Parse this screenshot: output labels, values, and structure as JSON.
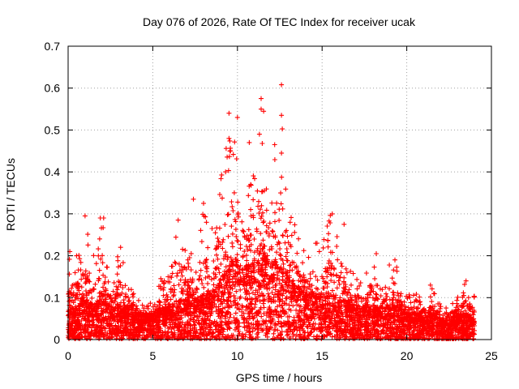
{
  "chart_data": {
    "type": "scatter",
    "title": "Day 076 of 2026, Rate Of TEC Index for receiver ucak",
    "xlabel": "GPS time / hours",
    "ylabel": "ROTI / TECUs",
    "xlim": [
      0,
      25
    ],
    "ylim": [
      0,
      0.7
    ],
    "xticks": [
      0,
      5,
      10,
      15,
      20,
      25
    ],
    "yticks": [
      0,
      0.1,
      0.2,
      0.3,
      0.4,
      0.5,
      0.6,
      0.7
    ],
    "xtick_labels": [
      "0",
      "5",
      "10",
      "15",
      "20",
      "25"
    ],
    "ytick_labels": [
      "0",
      "0.1",
      "0.2",
      "0.3",
      "0.4",
      "0.5",
      "0.6",
      "0.7"
    ],
    "grid": true,
    "marker": "+",
    "color": "#ff0000",
    "x_range_observed": [
      0,
      24
    ],
    "envelope": {
      "x": [
        0.0,
        0.5,
        1.0,
        1.5,
        2.0,
        2.5,
        3.0,
        3.5,
        4.0,
        4.5,
        5.0,
        5.5,
        6.0,
        6.5,
        7.0,
        7.5,
        8.0,
        8.5,
        9.0,
        9.5,
        10.0,
        10.5,
        11.0,
        11.5,
        12.0,
        12.5,
        13.0,
        13.5,
        14.0,
        14.5,
        15.0,
        15.5,
        16.0,
        16.5,
        17.0,
        17.5,
        18.0,
        18.5,
        19.0,
        19.5,
        20.0,
        20.5,
        21.0,
        21.5,
        22.0,
        22.5,
        23.0,
        23.5,
        24.0
      ],
      "upper": [
        0.21,
        0.2,
        0.29,
        0.2,
        0.29,
        0.16,
        0.22,
        0.15,
        0.1,
        0.09,
        0.09,
        0.15,
        0.16,
        0.28,
        0.2,
        0.24,
        0.32,
        0.26,
        0.4,
        0.54,
        0.46,
        0.36,
        0.42,
        0.57,
        0.38,
        0.61,
        0.36,
        0.26,
        0.21,
        0.24,
        0.23,
        0.3,
        0.25,
        0.18,
        0.15,
        0.15,
        0.21,
        0.12,
        0.19,
        0.17,
        0.11,
        0.11,
        0.1,
        0.13,
        0.08,
        0.09,
        0.1,
        0.14,
        0.11
      ],
      "median": [
        0.05,
        0.05,
        0.07,
        0.05,
        0.07,
        0.05,
        0.05,
        0.05,
        0.04,
        0.04,
        0.04,
        0.05,
        0.05,
        0.06,
        0.06,
        0.06,
        0.07,
        0.07,
        0.09,
        0.12,
        0.12,
        0.11,
        0.13,
        0.15,
        0.11,
        0.13,
        0.1,
        0.08,
        0.07,
        0.07,
        0.07,
        0.07,
        0.06,
        0.06,
        0.05,
        0.05,
        0.05,
        0.05,
        0.05,
        0.05,
        0.04,
        0.04,
        0.04,
        0.04,
        0.03,
        0.03,
        0.04,
        0.04,
        0.03
      ]
    },
    "notable_points": [
      {
        "x": 12.6,
        "y": 0.608
      },
      {
        "x": 11.4,
        "y": 0.575
      },
      {
        "x": 9.5,
        "y": 0.54
      },
      {
        "x": 12.6,
        "y": 0.535
      },
      {
        "x": 10.0,
        "y": 0.53
      },
      {
        "x": 11.4,
        "y": 0.55
      },
      {
        "x": 9.5,
        "y": 0.48
      },
      {
        "x": 11.3,
        "y": 0.49
      },
      {
        "x": 12.2,
        "y": 0.465
      },
      {
        "x": 12.6,
        "y": 0.445
      },
      {
        "x": 10.7,
        "y": 0.47
      },
      {
        "x": 9.3,
        "y": 0.4
      },
      {
        "x": 7.4,
        "y": 0.335
      },
      {
        "x": 8.0,
        "y": 0.325
      },
      {
        "x": 6.5,
        "y": 0.285
      },
      {
        "x": 15.6,
        "y": 0.3
      },
      {
        "x": 1.0,
        "y": 0.295
      },
      {
        "x": 2.1,
        "y": 0.29
      },
      {
        "x": 1.9,
        "y": 0.29
      },
      {
        "x": 8.5,
        "y": 0.265
      },
      {
        "x": 0.1,
        "y": 0.21
      },
      {
        "x": 0.5,
        "y": 0.2
      },
      {
        "x": 3.1,
        "y": 0.22
      },
      {
        "x": 14.7,
        "y": 0.23
      },
      {
        "x": 16.3,
        "y": 0.275
      },
      {
        "x": 18.2,
        "y": 0.205
      },
      {
        "x": 19.3,
        "y": 0.19
      },
      {
        "x": 23.5,
        "y": 0.14
      },
      {
        "x": 21.4,
        "y": 0.13
      }
    ]
  }
}
